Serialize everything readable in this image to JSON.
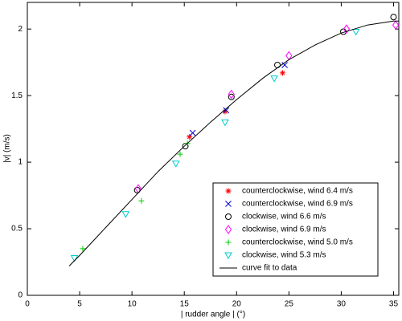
{
  "chart_data": {
    "type": "scatter",
    "xlabel": "| rudder angle | (°)",
    "ylabel": "|v| (m/s)",
    "xlim": [
      0,
      35.5
    ],
    "ylim": [
      0,
      2.2
    ],
    "xticks": [
      0,
      5,
      10,
      15,
      20,
      25,
      30,
      35
    ],
    "yticks": [
      0,
      0.5,
      1,
      1.5,
      2
    ],
    "legend": "lower right",
    "series": [
      {
        "name": "counterclockwise, wind 6.4 m/s",
        "color": "#ff0000",
        "marker": "*",
        "x": [
          15.5,
          18.9,
          24.4
        ],
        "values": [
          1.19,
          1.38,
          1.67
        ]
      },
      {
        "name": "counterclockwise, wind 6.9 m/s",
        "color": "#0000cc",
        "marker": "x",
        "x": [
          15.8,
          19.0,
          24.6
        ],
        "values": [
          1.22,
          1.39,
          1.73
        ]
      },
      {
        "name": "clockwise, wind 6.6 m/s",
        "color": "#000000",
        "marker": "o",
        "x": [
          10.5,
          15.1,
          19.5,
          23.9,
          30.2,
          35.0
        ],
        "values": [
          0.79,
          1.12,
          1.49,
          1.73,
          1.98,
          2.09
        ]
      },
      {
        "name": "clockwise, wind 6.9 m/s",
        "color": "#ff00ff",
        "marker": "d",
        "x": [
          10.6,
          19.5,
          25.0,
          30.5,
          35.2
        ],
        "values": [
          0.8,
          1.51,
          1.8,
          2.0,
          2.03
        ]
      },
      {
        "name": "counterclockwise, wind 5.0 m/s",
        "color": "#00cc00",
        "marker": "+",
        "x": [
          5.3,
          10.9,
          14.6,
          15.3
        ],
        "values": [
          0.35,
          0.71,
          1.06,
          1.14
        ]
      },
      {
        "name": "clockwise, wind 5.3 m/s",
        "color": "#00cccc",
        "marker": "v",
        "x": [
          4.5,
          9.4,
          14.2,
          18.9,
          23.6,
          31.4
        ],
        "values": [
          0.28,
          0.61,
          0.99,
          1.3,
          1.63,
          1.98
        ]
      },
      {
        "name": "curve fit to data",
        "color": "#000000",
        "marker": "line",
        "x": [
          4,
          5,
          7.5,
          10,
          12.5,
          15,
          17.5,
          20,
          22.5,
          25,
          27.5,
          30,
          32.5,
          35,
          35.5
        ],
        "values": [
          0.22,
          0.3,
          0.51,
          0.72,
          0.93,
          1.12,
          1.3,
          1.47,
          1.63,
          1.77,
          1.88,
          1.97,
          2.03,
          2.06,
          2.06
        ]
      }
    ]
  }
}
